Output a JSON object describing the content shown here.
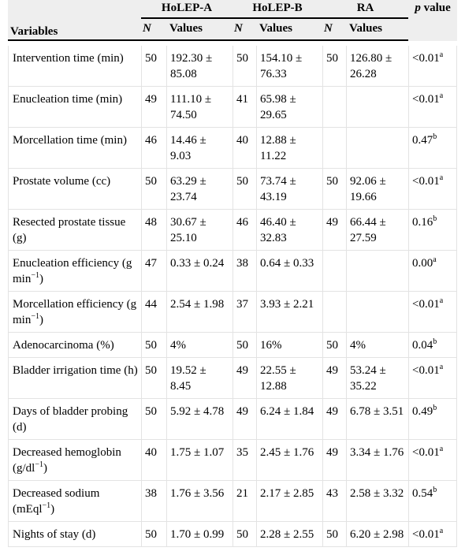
{
  "header": {
    "groups": [
      "HoLEP-A",
      "HoLEP-B",
      "RA"
    ],
    "p_value": {
      "p": "p",
      "rest": " value"
    },
    "variables": "Variables",
    "n": "N",
    "values": "Values"
  },
  "rows": [
    {
      "var": "Intervention time (min)",
      "a_n": "50",
      "a_v": "192.30 ± 85.08",
      "b_n": "50",
      "b_v": "154.10 ± 76.33",
      "c_n": "50",
      "c_v": "126.80 ± 26.28",
      "p": "<0.01",
      "sup": "a"
    },
    {
      "var": "Enucleation time (min)",
      "a_n": "49",
      "a_v": "111.10 ± 74.50",
      "b_n": "41",
      "b_v": "65.98 ± 29.65",
      "c_n": "",
      "c_v": "",
      "p": "<0.01",
      "sup": "a"
    },
    {
      "var": "Morcellation time (min)",
      "a_n": "46",
      "a_v": "14.46 ± 9.03",
      "b_n": "40",
      "b_v": "12.88 ± 11.22",
      "c_n": "",
      "c_v": "",
      "p": "0.47",
      "sup": "b"
    },
    {
      "var": "Prostate volume (cc)",
      "a_n": "50",
      "a_v": "63.29 ± 23.74",
      "b_n": "50",
      "b_v": "73.74 ± 43.19",
      "c_n": "50",
      "c_v": "92.06 ± 19.66",
      "p": "<0.01",
      "sup": "a"
    },
    {
      "var": "Resected prostate tissue (g)",
      "a_n": "48",
      "a_v": "30.67 ± 25.10",
      "b_n": "46",
      "b_v": "46.40 ± 32.83",
      "c_n": "49",
      "c_v": "66.44 ± 27.59",
      "p": "0.16",
      "sup": "b"
    },
    {
      "var_pre": "Enucleation efficiency (g min",
      "var_sup": "−1",
      "var_post": ")",
      "a_n": "47",
      "a_v": "0.33 ± 0.24",
      "b_n": "38",
      "b_v": "0.64 ± 0.33",
      "c_n": "",
      "c_v": "",
      "p": "0.00",
      "sup": "a"
    },
    {
      "var_pre": "Morcellation efficiency (g min",
      "var_sup": "−1",
      "var_post": ")",
      "a_n": "44",
      "a_v": "2.54 ± 1.98",
      "b_n": "37",
      "b_v": "3.93 ± 2.21",
      "c_n": "",
      "c_v": "",
      "p": "<0.01",
      "sup": "a"
    },
    {
      "var": "Adenocarcinoma (%)",
      "a_n": "50",
      "a_v": "4%",
      "b_n": "50",
      "b_v": "16%",
      "c_n": "50",
      "c_v": "4%",
      "p": "0.04",
      "sup": "b"
    },
    {
      "var": "Bladder irrigation time (h)",
      "a_n": "50",
      "a_v": "19.52 ± 8.45",
      "b_n": "49",
      "b_v": "22.55 ± 12.88",
      "c_n": "49",
      "c_v": "53.24 ± 35.22",
      "p": "<0.01",
      "sup": "a"
    },
    {
      "var": "Days of bladder probing (d)",
      "a_n": "50",
      "a_v": "5.92 ± 4.78",
      "b_n": "49",
      "b_v": "6.24 ± 1.84",
      "c_n": "49",
      "c_v": "6.78 ± 3.51",
      "p": "0.49",
      "sup": "b"
    },
    {
      "var_pre": "Decreased hemoglobin (g/dl",
      "var_sup": "−1",
      "var_post": ")",
      "a_n": "40",
      "a_v": "1.75 ± 1.07",
      "b_n": "35",
      "b_v": "2.45 ± 1.76",
      "c_n": "49",
      "c_v": "3.34 ± 1.76",
      "p": "<0.01",
      "sup": "a"
    },
    {
      "var_pre": "Decreased sodium (mEql",
      "var_sup": "−1",
      "var_post": ")",
      "a_n": "38",
      "a_v": "1.76 ± 3.56",
      "b_n": "21",
      "b_v": "2.17 ± 2.85",
      "c_n": "43",
      "c_v": "2.58 ± 3.32",
      "p": "0.54",
      "sup": "b"
    },
    {
      "var": "Nights of stay (d)",
      "a_n": "50",
      "a_v": "1.70 ± 0.99",
      "b_n": "50",
      "b_v": "2.28 ± 2.55",
      "c_n": "50",
      "c_v": "6.20 ± 2.98",
      "p": "<0.01",
      "sup": "a"
    }
  ]
}
